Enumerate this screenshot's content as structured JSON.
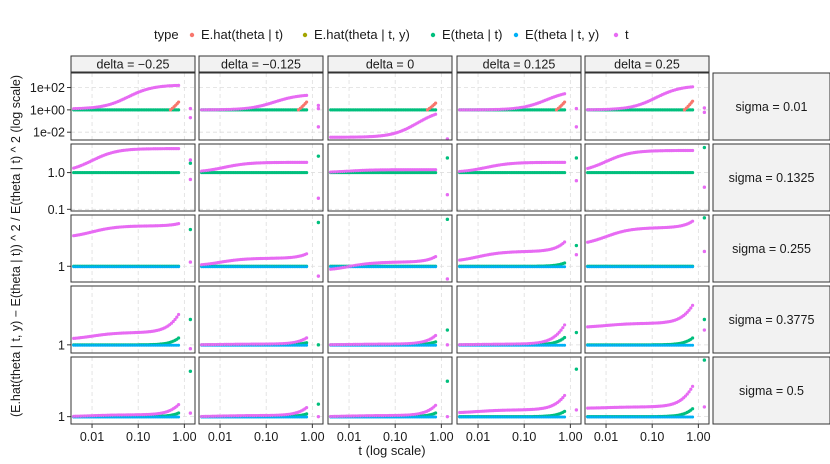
{
  "chart_data": {
    "type": "scatter",
    "title": "",
    "xlabel": "t (log scale)",
    "ylabel": "(E.hat(theta | t, y) − E(theta | t)) ^ 2 / E(theta | t) ^ 2 (log scale)",
    "x_scale": "log",
    "y_scale": "log",
    "x_ticks": [
      "0.01",
      "0.10",
      "1.00"
    ],
    "x_tick_values": [
      0.01,
      0.1,
      1.0
    ],
    "xlim": [
      0.0035,
      1.7
    ],
    "legend": {
      "title": "type",
      "position": "top",
      "entries": [
        {
          "label": "E.hat(theta | t)",
          "color": "#F8766D"
        },
        {
          "label": "E.hat(theta | t, y)",
          "color": "#A3A500"
        },
        {
          "label": "E(theta | t)",
          "color": "#00BF7D"
        },
        {
          "label": "E(theta | t, y)",
          "color": "#00B0F6"
        },
        {
          "label": "t",
          "color": "#E76BF3"
        }
      ]
    },
    "facet_cols": [
      "delta = −0.25",
      "delta = −0.125",
      "delta = 0",
      "delta = 0.125",
      "delta = 0.25"
    ],
    "facet_rows": [
      "sigma = 0.01",
      "sigma = 0.1325",
      "sigma = 0.255",
      "sigma = 0.3775",
      "sigma = 0.5"
    ],
    "row_scales": [
      {
        "ylim": [
          0.002,
          2000
        ],
        "ticks": [
          "1e-02",
          "1e+00",
          "1e+02"
        ],
        "tick_values": [
          0.01,
          1,
          100
        ]
      },
      {
        "ylim": [
          0.09,
          6
        ],
        "ticks": [
          "0.1",
          "1.0"
        ],
        "tick_values": [
          0.1,
          1.0
        ]
      },
      {
        "ylim": [
          0.7,
          3.2
        ],
        "ticks": [
          "1"
        ],
        "tick_values": [
          1
        ]
      },
      {
        "ylim": [
          0.8,
          5
        ],
        "ticks": [
          "1"
        ],
        "tick_values": [
          1
        ]
      },
      {
        "ylim": [
          0.82,
          5
        ],
        "ticks": [
          "1"
        ],
        "tick_values": [
          1
        ]
      }
    ],
    "series_shapes": {
      "flat": {
        "name": "E(theta | t)",
        "color": "#00BF7D"
      },
      "curve": {
        "name": "t",
        "color": "#E76BF3"
      }
    },
    "panels": [
      [
        {
          "curve_start": 1.2,
          "curve_plateau": 170,
          "knee": 0.06,
          "rise": 0,
          "outlier_pts": [
            [
              1.35,
              0.2
            ],
            [
              1.35,
              1.3
            ]
          ],
          "red_end": 5
        },
        {
          "curve_start": 1.0,
          "curve_plateau": 25,
          "knee": 0.15,
          "rise": 0,
          "outlier_pts": [
            [
              1.35,
              0.03
            ],
            [
              1.35,
              1.3
            ],
            [
              1.35,
              2.5
            ]
          ],
          "red_end": 5
        },
        {
          "curve_start": 0.0035,
          "curve_plateau": 1.2,
          "knee": 0.3,
          "rise": 0,
          "outlier_pts": [
            [
              1.35,
              0.0025
            ]
          ],
          "red_end": 4
        },
        {
          "curve_start": 1.0,
          "curve_plateau": 60,
          "knee": 0.3,
          "rise": 0,
          "outlier_pts": [
            [
              1.35,
              0.03
            ],
            [
              1.35,
              1.3
            ]
          ],
          "red_end": 5
        },
        {
          "curve_start": 1.0,
          "curve_plateau": 150,
          "knee": 0.12,
          "rise": 0,
          "outlier_pts": [
            [
              1.35,
              0.6
            ],
            [
              1.35,
              1.5
            ]
          ],
          "red_end": 6
        }
      ],
      [
        {
          "curve_start": 1.0,
          "curve_plateau": 4.5,
          "knee": 0.01,
          "rise": 0,
          "outlier_pts": [
            [
              1.35,
              1.8
            ],
            [
              1.35,
              2.2
            ],
            [
              1.35,
              0.65
            ]
          ],
          "red_end": 1
        },
        {
          "curve_start": 1.0,
          "curve_plateau": 1.9,
          "knee": 0.012,
          "rise": 0,
          "outlier_pts": [
            [
              1.35,
              2.8
            ],
            [
              1.35,
              0.2
            ]
          ],
          "red_end": 1
        },
        {
          "curve_start": 1.0,
          "curve_plateau": 1.2,
          "knee": 0.01,
          "rise": 0,
          "outlier_pts": [
            [
              1.35,
              2.5
            ],
            [
              1.35,
              0.25
            ]
          ],
          "red_end": 1
        },
        {
          "curve_start": 1.0,
          "curve_plateau": 1.9,
          "knee": 0.015,
          "rise": 0,
          "outlier_pts": [
            [
              1.35,
              2.5
            ],
            [
              1.35,
              0.6
            ]
          ],
          "red_end": 1
        },
        {
          "curve_start": 1.0,
          "curve_plateau": 4.0,
          "knee": 0.01,
          "rise": 0,
          "outlier_pts": [
            [
              1.35,
              4.8
            ],
            [
              1.35,
              0.4
            ]
          ],
          "red_end": 1
        }
      ],
      [
        {
          "curve_start": 1.9,
          "curve_plateau": 2.5,
          "knee": 0.01,
          "rise": 0.1,
          "outlier_pts": [
            [
              1.35,
              2.3
            ],
            [
              1.35,
              1.1
            ]
          ],
          "red_end": 1
        },
        {
          "curve_start": 1.0,
          "curve_plateau": 1.2,
          "knee": 0.01,
          "rise": 0.2,
          "outlier_pts": [
            [
              1.35,
              2.7
            ],
            [
              1.35,
              0.8
            ]
          ],
          "red_end": 1
        },
        {
          "curve_start": 0.9,
          "curve_plateau": 1.1,
          "knee": 0.01,
          "rise": 0.25,
          "outlier_pts": [
            [
              1.35,
              2.9
            ],
            [
              1.35,
              0.75
            ]
          ],
          "red_end": 1
        },
        {
          "curve_start": 1.1,
          "curve_plateau": 1.4,
          "knee": 0.01,
          "rise": 0.45,
          "outlier_pts": [
            [
              1.35,
              1.6
            ],
            [
              1.35,
              1.3
            ]
          ],
          "red_end": 1
        },
        {
          "curve_start": 1.6,
          "curve_plateau": 2.4,
          "knee": 0.01,
          "rise": 0.3,
          "outlier_pts": [
            [
              1.35,
              3.0
            ],
            [
              1.35,
              1.4
            ]
          ],
          "red_end": 1
        }
      ],
      [
        {
          "curve_start": 1.15,
          "curve_plateau": 1.4,
          "knee": 0.01,
          "rise": 1.2,
          "outlier_pts": [
            [
              1.35,
              2.0
            ],
            [
              1.35,
              0.9
            ]
          ],
          "red_end": 1
        },
        {
          "curve_start": 1.0,
          "curve_plateau": 1.02,
          "knee": 0.01,
          "rise": 0.35,
          "outlier_pts": [
            [
              1.35,
              1.0
            ]
          ],
          "red_end": 1
        },
        {
          "curve_start": 1.0,
          "curve_plateau": 1.02,
          "knee": 0.01,
          "rise": 0.5,
          "outlier_pts": [
            [
              1.35,
              1.5
            ],
            [
              1.35,
              1.0
            ]
          ],
          "red_end": 1
        },
        {
          "curve_start": 1.0,
          "curve_plateau": 1.02,
          "knee": 0.01,
          "rise": 1.3,
          "outlier_pts": [
            [
              1.35,
              1.4
            ]
          ],
          "red_end": 1
        },
        {
          "curve_start": 1.6,
          "curve_plateau": 1.8,
          "knee": 0.01,
          "rise": 1.2,
          "outlier_pts": [
            [
              1.35,
              2.0
            ],
            [
              1.35,
              1.5
            ]
          ],
          "red_end": 1
        }
      ],
      [
        {
          "curve_start": 1.0,
          "curve_plateau": 1.05,
          "knee": 0.01,
          "rise": 0.6,
          "outlier_pts": [
            [
              1.35,
              3.4
            ],
            [
              1.35,
              1.1
            ]
          ],
          "red_end": 1
        },
        {
          "curve_start": 1.0,
          "curve_plateau": 1.03,
          "knee": 0.01,
          "rise": 0.45,
          "outlier_pts": [
            [
              1.35,
              1.4
            ],
            [
              1.35,
              1.0
            ]
          ],
          "red_end": 1
        },
        {
          "curve_start": 1.0,
          "curve_plateau": 1.03,
          "knee": 0.01,
          "rise": 0.6,
          "outlier_pts": [
            [
              1.35,
              2.6
            ],
            [
              1.35,
              1.0
            ]
          ],
          "red_end": 1
        },
        {
          "curve_start": 1.1,
          "curve_plateau": 1.2,
          "knee": 0.01,
          "rise": 0.9,
          "outlier_pts": [
            [
              1.35,
              3.6
            ],
            [
              1.35,
              1.2
            ]
          ],
          "red_end": 1
        },
        {
          "curve_start": 1.25,
          "curve_plateau": 1.3,
          "knee": 0.01,
          "rise": 1.4,
          "outlier_pts": [
            [
              1.35,
              4.6
            ],
            [
              1.35,
              1.3
            ]
          ],
          "red_end": 1
        }
      ]
    ]
  }
}
